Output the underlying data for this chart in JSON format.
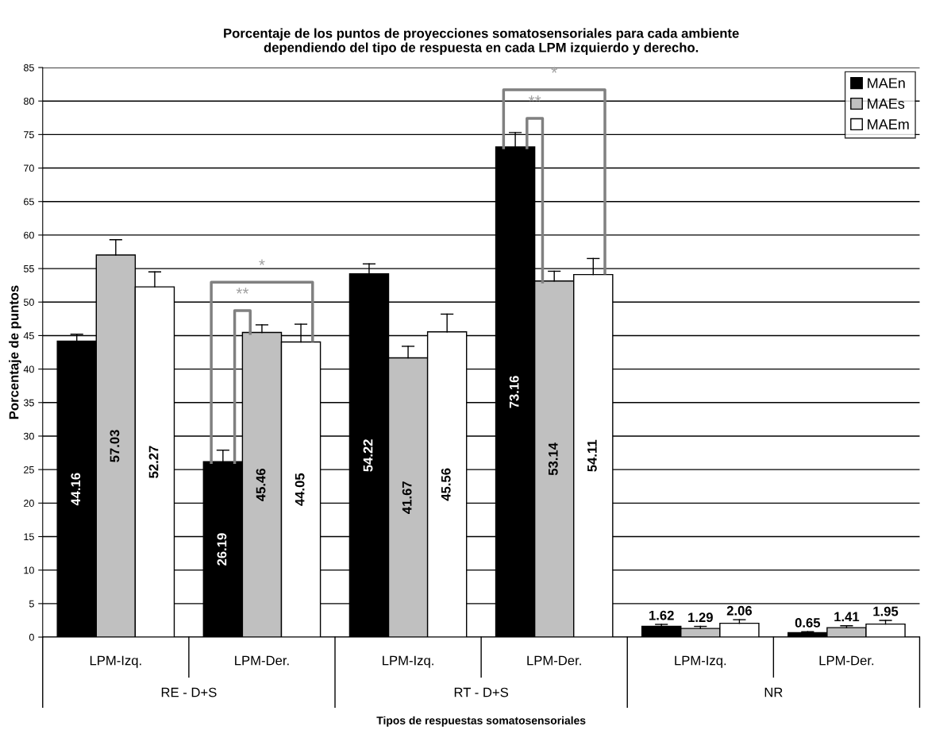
{
  "chart_data": {
    "type": "bar",
    "title": "Porcentaje de los puntos de proyecciones somatosensoriales para cada ambiente\ndependiendo del tipo de respuesta en cada LPM izquierdo y derecho.",
    "xlabel": "Tipos de respuestas somatosensoriales",
    "ylabel": "Porcentaje de puntos",
    "categories": [
      "LPM-Izq.",
      "LPM-Der.",
      "LPM-Izq.",
      "LPM-Der.",
      "LPM-Izq.",
      "LPM-Der."
    ],
    "series": [
      {
        "name": "MAEn",
        "color": "#000000",
        "values": [
          44.16,
          26.19,
          54.22,
          73.16,
          1.62,
          0.65
        ],
        "errors": [
          [
            44.16,
            45.2
          ],
          [
            26.19,
            27.9
          ],
          [
            54.22,
            55.7
          ],
          [
            73.16,
            75.3
          ],
          [
            1.62,
            1.9
          ],
          [
            0.65,
            0.8
          ]
        ]
      },
      {
        "name": "MAEs",
        "color": "#c0c0c0",
        "values": [
          57.03,
          45.46,
          41.67,
          53.14,
          1.29,
          1.41
        ],
        "errors": [
          [
            57.03,
            59.3
          ],
          [
            45.46,
            46.6
          ],
          [
            41.67,
            43.4
          ],
          [
            53.14,
            54.6
          ],
          [
            1.29,
            1.6
          ],
          [
            1.41,
            1.7
          ]
        ]
      },
      {
        "name": "MAEm",
        "color": "#ffffff",
        "values": [
          52.27,
          44.05,
          45.56,
          54.11,
          2.06,
          1.95
        ],
        "errors": [
          [
            52.27,
            54.5
          ],
          [
            44.05,
            46.7
          ],
          [
            45.56,
            48.2
          ],
          [
            54.11,
            56.5
          ],
          [
            2.06,
            2.6
          ],
          [
            1.95,
            2.5
          ]
        ]
      }
    ],
    "annotations": [
      "RE - D+S",
      "RT - D+S",
      "NR",
      "*",
      "**",
      "*",
      "**"
    ],
    "ylim": [
      0,
      85
    ],
    "yticks": [
      0,
      5,
      10,
      15,
      20,
      25,
      30,
      35,
      40,
      45,
      50,
      55,
      60,
      65,
      70,
      75,
      80,
      85
    ],
    "grid": "y",
    "legend": "top right",
    "data_labels": true
  }
}
